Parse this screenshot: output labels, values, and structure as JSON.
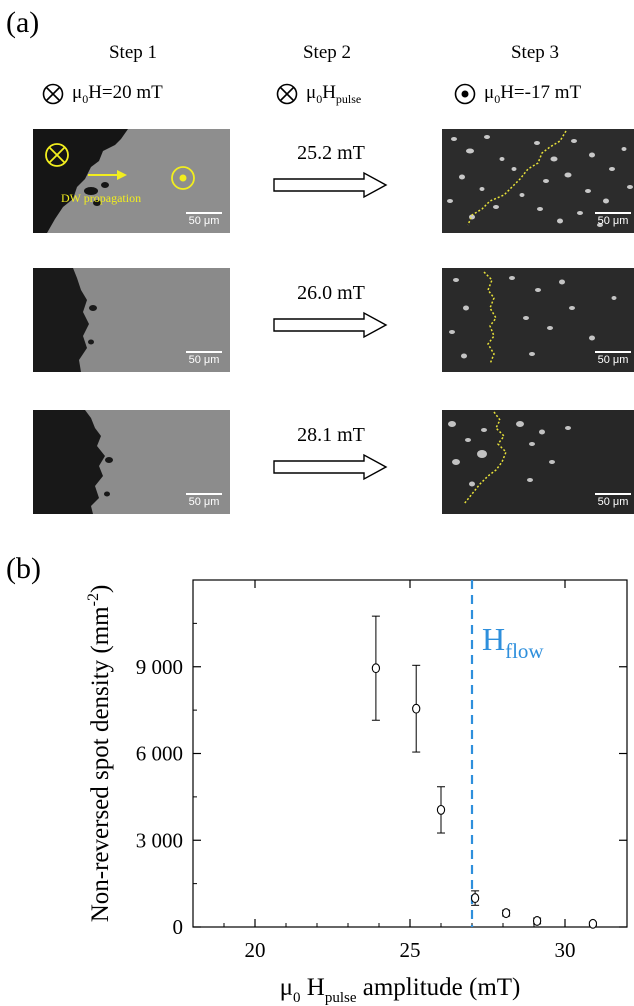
{
  "panel_a": {
    "label": "(a)",
    "steps": [
      {
        "title": "Step 1",
        "field_symbol": "into-page-icon",
        "field_prefix": "μ",
        "field_sub": "0",
        "field_text": "H=20 mT"
      },
      {
        "title": "Step 2",
        "field_symbol": "into-page-icon",
        "field_prefix": "μ",
        "field_sub": "0",
        "field_text": "H",
        "field_sub2": "pulse"
      },
      {
        "title": "Step 3",
        "field_symbol": "out-of-page-icon",
        "field_prefix": "μ",
        "field_sub": "0",
        "field_text": "H=-17 mT"
      }
    ],
    "rows": [
      {
        "pulse": "25.2 mT",
        "scale_left": "50 μm",
        "scale_right": "50 μm",
        "annotation": "DW propagation"
      },
      {
        "pulse": "26.0 mT",
        "scale_left": "50 μm",
        "scale_right": "50 μm"
      },
      {
        "pulse": "28.1 mT",
        "scale_left": "50 μm",
        "scale_right": "50 μm"
      }
    ],
    "colors": {
      "annotation": "#f2ee1e",
      "contour": "#e8e23a"
    }
  },
  "panel_b": {
    "label": "(b)",
    "chart_data": {
      "type": "scatter",
      "xlabel_mu": "μ",
      "xlabel_sub0": "0",
      "xlabel_H": "H",
      "xlabel_sub": "pulse",
      "xlabel_rest": "amplitude (mT)",
      "ylabel": "Non-reversed spot density (mm",
      "ylabel_sup": "-2",
      "ylabel_end": ")",
      "xlim": [
        18,
        32
      ],
      "ylim": [
        0,
        12000
      ],
      "xticks": [
        20,
        25,
        30
      ],
      "xtick_labels": [
        "20",
        "25",
        "30"
      ],
      "yticks": [
        0,
        3000,
        6000,
        9000
      ],
      "ytick_labels": [
        "0",
        "3 000",
        "6 000",
        "9 000"
      ],
      "points": [
        {
          "x": 23.9,
          "y": 8950,
          "err": 1800
        },
        {
          "x": 25.2,
          "y": 7550,
          "err": 1500
        },
        {
          "x": 26.0,
          "y": 4050,
          "err": 800
        },
        {
          "x": 27.1,
          "y": 1000,
          "err": 250
        },
        {
          "x": 28.1,
          "y": 480,
          "err": 100
        },
        {
          "x": 29.1,
          "y": 210,
          "err": 100
        },
        {
          "x": 30.9,
          "y": 110,
          "err": 60
        }
      ],
      "flow_line": {
        "x": 27.0,
        "label_H": "H",
        "label_sub": "flow",
        "color": "#2e8fdc"
      }
    }
  }
}
